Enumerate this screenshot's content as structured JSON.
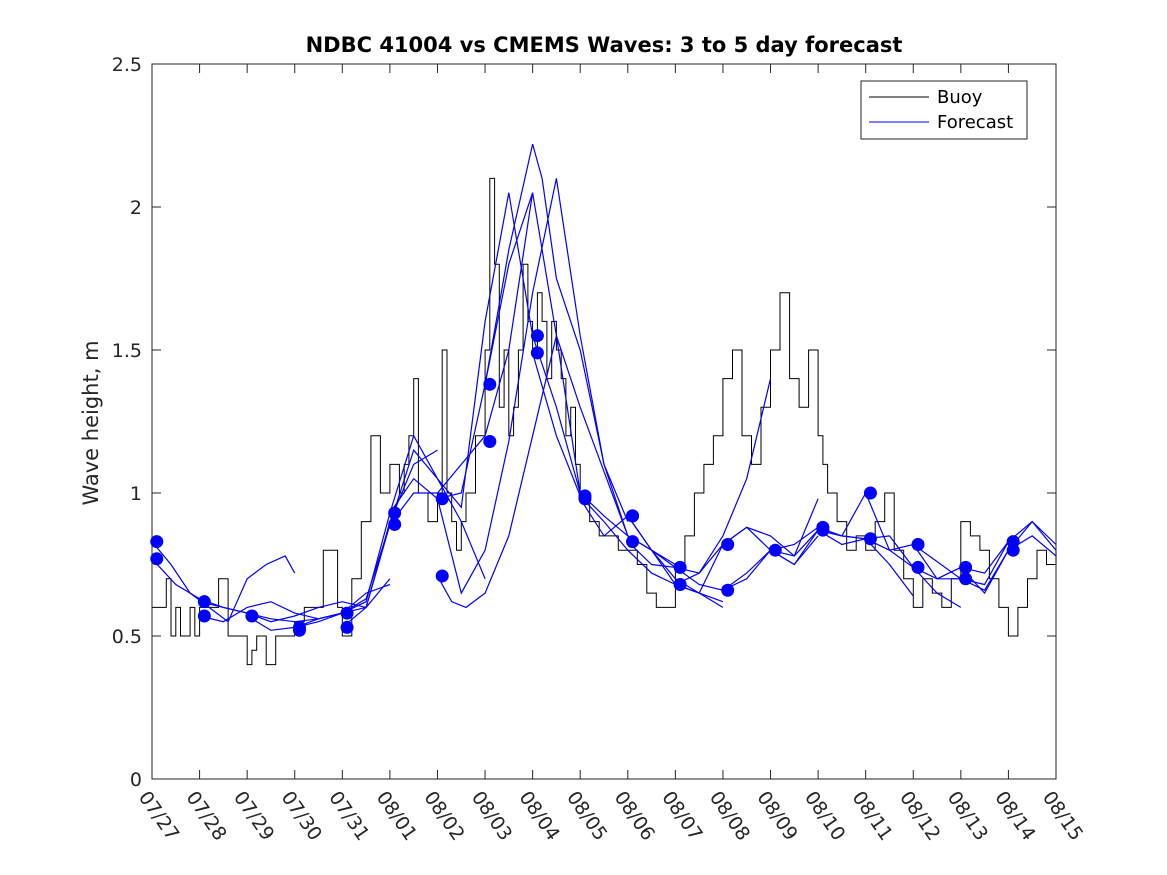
{
  "chart_data": {
    "type": "line",
    "title": "NDBC 41004 vs CMEMS Waves: 3 to 5 day forecast",
    "xlabel": "",
    "ylabel": "Wave height, m",
    "ylim": [
      0,
      2.5
    ],
    "yticks": [
      "0",
      "0.5",
      "1",
      "1.5",
      "2",
      "2.5"
    ],
    "x_range_days": [
      0,
      19
    ],
    "xticks": [
      "07/27",
      "07/28",
      "07/29",
      "07/30",
      "07/31",
      "08/01",
      "08/02",
      "08/03",
      "08/04",
      "08/05",
      "08/06",
      "08/07",
      "08/08",
      "08/09",
      "08/10",
      "08/11",
      "08/12",
      "08/13",
      "08/14",
      "08/15"
    ],
    "grid": false,
    "legend": {
      "placement": "top-right",
      "entries": [
        {
          "name": "Buoy",
          "color": "#000000"
        },
        {
          "name": "Forecast",
          "color": "#0000ff"
        }
      ]
    },
    "buoy": {
      "name": "Buoy",
      "color": "#000000",
      "x": [
        0,
        0.3,
        0.4,
        0.5,
        0.6,
        0.7,
        0.8,
        0.9,
        1.0,
        1.2,
        1.4,
        1.6,
        1.8,
        2.0,
        2.1,
        2.2,
        2.4,
        2.6,
        2.8,
        3.0,
        3.2,
        3.4,
        3.6,
        3.8,
        3.9,
        4.0,
        4.2,
        4.4,
        4.6,
        4.8,
        5.0,
        5.2,
        5.3,
        5.4,
        5.5,
        5.6,
        5.8,
        6.0,
        6.1,
        6.2,
        6.3,
        6.4,
        6.5,
        6.6,
        6.8,
        7.0,
        7.1,
        7.2,
        7.3,
        7.4,
        7.5,
        7.6,
        7.7,
        7.8,
        7.9,
        8.0,
        8.1,
        8.2,
        8.3,
        8.4,
        8.5,
        8.6,
        8.7,
        8.8,
        8.9,
        9.0,
        9.2,
        9.4,
        9.6,
        9.8,
        10.0,
        10.2,
        10.4,
        10.6,
        10.8,
        11.0,
        11.2,
        11.4,
        11.6,
        11.8,
        12.0,
        12.2,
        12.4,
        12.6,
        12.8,
        13.0,
        13.2,
        13.4,
        13.6,
        13.8,
        14.0,
        14.1,
        14.2,
        14.4,
        14.6,
        14.8,
        15.0,
        15.2,
        15.4,
        15.6,
        15.8,
        16.0,
        16.2,
        16.4,
        16.6,
        16.8,
        17.0,
        17.2,
        17.4,
        17.6,
        17.8,
        18.0,
        18.2,
        18.4,
        18.6,
        18.8,
        19.0
      ],
      "y": [
        0.6,
        0.7,
        0.5,
        0.6,
        0.5,
        0.5,
        0.6,
        0.5,
        0.6,
        0.6,
        0.7,
        0.5,
        0.5,
        0.4,
        0.45,
        0.5,
        0.4,
        0.5,
        0.5,
        0.55,
        0.6,
        0.6,
        0.8,
        0.8,
        0.6,
        0.5,
        0.7,
        0.9,
        1.2,
        1.0,
        1.1,
        1.0,
        1.1,
        1.2,
        1.4,
        1.0,
        0.9,
        1.0,
        1.5,
        1.0,
        0.9,
        0.8,
        0.9,
        1.0,
        1.2,
        1.5,
        2.1,
        1.8,
        1.3,
        1.5,
        1.2,
        1.3,
        1.5,
        1.8,
        1.6,
        1.5,
        1.7,
        1.6,
        1.4,
        1.6,
        1.5,
        1.4,
        1.2,
        1.3,
        1.1,
        1.0,
        0.9,
        0.85,
        0.85,
        0.8,
        0.8,
        0.75,
        0.65,
        0.6,
        0.6,
        0.75,
        0.85,
        1.0,
        1.1,
        1.2,
        1.4,
        1.5,
        1.2,
        1.1,
        1.3,
        1.5,
        1.7,
        1.4,
        1.3,
        1.5,
        1.2,
        1.1,
        1.0,
        0.9,
        0.8,
        0.85,
        0.8,
        0.9,
        1.0,
        0.8,
        0.7,
        0.6,
        0.7,
        0.65,
        0.6,
        0.7,
        0.9,
        0.85,
        0.8,
        0.7,
        0.6,
        0.5,
        0.6,
        0.7,
        0.8,
        0.75,
        0.8
      ]
    },
    "forecast_color": "#0000ff",
    "forecasts": [
      {
        "x": [
          0.0,
          0.4,
          0.8,
          1.2,
          1.6,
          2.0,
          2.4,
          2.8,
          3.0
        ],
        "y": [
          0.83,
          0.75,
          0.65,
          0.6,
          0.55,
          0.7,
          0.75,
          0.78,
          0.72
        ]
      },
      {
        "x": [
          0.0,
          0.5,
          1.0,
          1.5,
          2.0,
          2.5,
          3.0,
          3.5,
          4.0
        ],
        "y": [
          0.77,
          0.68,
          0.63,
          0.6,
          0.58,
          0.56,
          0.55,
          0.56,
          0.58
        ]
      },
      {
        "x": [
          1.0,
          1.5,
          2.0,
          2.5,
          3.0,
          3.5,
          4.0,
          4.5,
          5.0
        ],
        "y": [
          0.62,
          0.6,
          0.58,
          0.55,
          0.57,
          0.6,
          0.62,
          0.6,
          0.7
        ]
      },
      {
        "x": [
          1.0,
          1.5,
          2.0,
          2.5,
          3.0,
          3.5,
          4.0,
          4.5,
          5.0
        ],
        "y": [
          0.57,
          0.55,
          0.6,
          0.62,
          0.58,
          0.56,
          0.58,
          0.65,
          0.68
        ]
      },
      {
        "x": [
          2.0,
          2.5,
          3.0,
          3.5,
          4.0,
          4.5,
          5.0,
          5.5,
          6.0
        ],
        "y": [
          0.57,
          0.52,
          0.53,
          0.55,
          0.58,
          0.6,
          0.9,
          1.1,
          1.15
        ]
      },
      {
        "x": [
          3.0,
          3.5,
          4.0,
          4.5,
          5.0,
          5.5,
          6.0,
          6.5,
          7.0
        ],
        "y": [
          0.53,
          0.56,
          0.58,
          0.63,
          0.89,
          1.15,
          1.05,
          0.9,
          0.7
        ]
      },
      {
        "x": [
          4.0,
          4.5,
          5.0,
          5.5,
          6.0,
          6.5,
          7.0,
          7.5,
          8.0
        ],
        "y": [
          0.58,
          0.62,
          0.93,
          1.2,
          1.05,
          0.95,
          1.6,
          2.05,
          1.55
        ]
      },
      {
        "x": [
          4.0,
          4.5,
          5.0,
          5.5,
          6.0,
          6.5,
          7.0,
          7.5,
          8.0
        ],
        "y": [
          0.53,
          0.6,
          0.89,
          1.0,
          1.0,
          1.1,
          1.2,
          1.5,
          2.05
        ]
      },
      {
        "x": [
          5.0,
          5.5,
          6.0,
          6.5,
          7.0,
          7.5,
          8.0,
          8.5,
          9.0
        ],
        "y": [
          0.93,
          1.05,
          0.98,
          1.0,
          1.38,
          1.8,
          2.05,
          1.55,
          1.0
        ]
      },
      {
        "x": [
          6.0,
          6.3,
          6.6,
          7.0,
          7.5,
          8.0,
          8.5,
          9.0,
          10.0
        ],
        "y": [
          0.71,
          0.62,
          0.6,
          0.65,
          0.85,
          1.2,
          1.55,
          1.3,
          0.85
        ]
      },
      {
        "x": [
          6.0,
          6.5,
          7.0,
          7.5,
          8.0,
          8.5,
          9.0,
          9.5,
          10.0
        ],
        "y": [
          0.98,
          0.65,
          0.8,
          1.18,
          1.7,
          2.1,
          1.55,
          1.1,
          0.9
        ]
      },
      {
        "x": [
          7.0,
          7.5,
          8.0,
          8.2,
          8.5,
          9.0,
          9.5,
          10.0,
          11.0
        ],
        "y": [
          1.38,
          1.85,
          2.22,
          2.1,
          1.75,
          1.5,
          1.1,
          0.85,
          0.75
        ]
      },
      {
        "x": [
          8.0,
          8.5,
          9.0,
          9.5,
          10.0,
          10.5,
          11.0,
          11.5,
          12.0
        ],
        "y": [
          1.55,
          1.3,
          1.0,
          0.92,
          0.85,
          0.8,
          0.7,
          0.65,
          0.62
        ]
      },
      {
        "x": [
          8.0,
          8.5,
          9.0,
          9.5,
          10.0,
          10.5,
          11.0,
          11.5,
          12.0
        ],
        "y": [
          1.49,
          1.2,
          0.99,
          0.9,
          0.8,
          0.72,
          0.68,
          0.65,
          0.6
        ]
      },
      {
        "x": [
          9.0,
          9.5,
          10.0,
          10.5,
          11.0,
          11.5,
          12.0,
          12.5,
          13.0
        ],
        "y": [
          0.98,
          0.85,
          0.92,
          0.8,
          0.74,
          0.72,
          0.85,
          1.05,
          1.4
        ]
      },
      {
        "x": [
          10.0,
          10.5,
          11.0,
          11.5,
          12.0,
          12.5,
          13.0,
          13.5,
          14.0
        ],
        "y": [
          0.92,
          0.8,
          0.68,
          0.65,
          0.82,
          0.88,
          0.85,
          0.78,
          0.98
        ]
      },
      {
        "x": [
          10.0,
          10.5,
          11.0,
          11.5,
          12.0,
          12.5,
          13.0,
          13.5,
          14.0
        ],
        "y": [
          0.83,
          0.75,
          0.74,
          0.68,
          0.66,
          0.72,
          0.8,
          0.75,
          0.85
        ]
      },
      {
        "x": [
          11.0,
          11.5,
          12.0,
          12.5,
          13.0,
          13.5,
          14.0,
          14.5,
          15.0
        ],
        "y": [
          0.68,
          0.72,
          0.82,
          0.88,
          0.8,
          0.75,
          0.87,
          0.85,
          0.84
        ]
      },
      {
        "x": [
          12.0,
          12.5,
          13.0,
          13.5,
          14.0,
          14.5,
          15.0,
          15.5,
          16.0
        ],
        "y": [
          0.66,
          0.7,
          0.8,
          0.82,
          0.88,
          0.85,
          0.84,
          0.75,
          0.64
        ]
      },
      {
        "x": [
          13.0,
          13.5,
          14.0,
          14.5,
          15.0,
          15.5,
          16.0,
          16.5,
          17.0
        ],
        "y": [
          0.8,
          0.78,
          0.87,
          0.82,
          0.84,
          0.8,
          0.74,
          0.65,
          0.6
        ]
      },
      {
        "x": [
          14.0,
          14.5,
          15.0,
          15.5,
          16.0,
          16.5,
          17.0,
          17.5,
          18.0
        ],
        "y": [
          0.87,
          0.85,
          1.0,
          0.8,
          0.82,
          0.76,
          0.7,
          0.68,
          0.83
        ]
      },
      {
        "x": [
          15.0,
          15.5,
          16.0,
          16.5,
          17.0,
          17.5,
          18.0,
          18.5,
          19.0
        ],
        "y": [
          0.84,
          0.85,
          0.74,
          0.7,
          0.74,
          0.65,
          0.8,
          0.9,
          0.82
        ]
      },
      {
        "x": [
          16.0,
          16.5,
          17.0,
          17.5,
          18.0,
          18.5,
          19.0
        ],
        "y": [
          0.82,
          0.7,
          0.7,
          0.66,
          0.8,
          0.85,
          0.78
        ]
      },
      {
        "x": [
          17.0,
          17.5,
          18.0,
          18.5,
          19.0
        ],
        "y": [
          0.74,
          0.72,
          0.83,
          0.9,
          0.8
        ]
      }
    ],
    "forecast_markers": {
      "x": [
        0.1,
        0.1,
        1.1,
        1.1,
        2.1,
        3.1,
        3.1,
        4.1,
        4.1,
        5.1,
        5.1,
        6.1,
        6.1,
        7.1,
        7.1,
        8.1,
        8.1,
        9.1,
        9.1,
        10.1,
        10.1,
        10.1,
        11.1,
        11.1,
        12.1,
        12.1,
        13.1,
        14.1,
        14.1,
        15.1,
        15.1,
        16.1,
        16.1,
        17.1,
        17.1,
        18.1,
        18.1
      ],
      "y": [
        0.83,
        0.77,
        0.62,
        0.57,
        0.57,
        0.53,
        0.52,
        0.58,
        0.53,
        0.93,
        0.89,
        0.98,
        0.71,
        1.38,
        1.18,
        1.55,
        1.49,
        0.99,
        0.98,
        0.92,
        0.92,
        0.83,
        0.74,
        0.68,
        0.82,
        0.66,
        0.8,
        0.88,
        0.87,
        1.0,
        0.84,
        0.82,
        0.74,
        0.74,
        0.7,
        0.83,
        0.8
      ]
    }
  }
}
